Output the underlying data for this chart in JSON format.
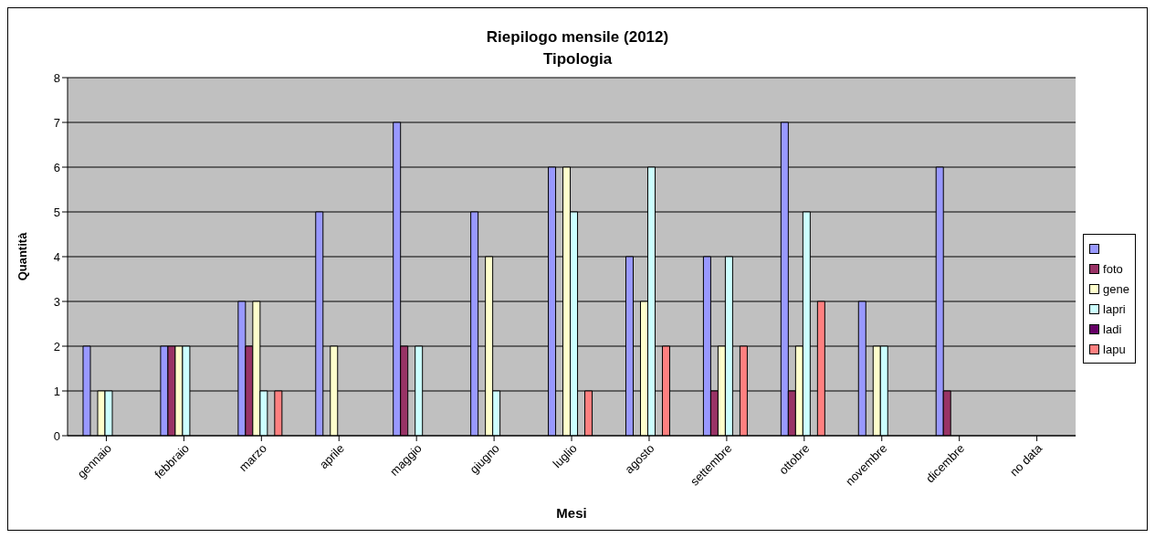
{
  "chart_data": {
    "type": "bar",
    "title": "Riepilogo mensile (2012)",
    "subtitle": "Tipologia",
    "xlabel": "Mesi",
    "ylabel": "Quantità",
    "categories": [
      "gennaio",
      "febbraio",
      "marzo",
      "aprile",
      "maggio",
      "giugno",
      "luglio",
      "agosto",
      "settembre",
      "ottobre",
      "novembre",
      "dicembre",
      "no data"
    ],
    "series": [
      {
        "color": "#9999ff",
        "values": [
          2,
          2,
          3,
          5,
          7,
          5,
          6,
          4,
          4,
          7,
          3,
          6,
          0
        ]
      },
      {
        "name": "foto",
        "color": "#993366",
        "values": [
          0,
          2,
          2,
          0,
          2,
          0,
          0,
          0,
          1,
          1,
          0,
          1,
          0
        ]
      },
      {
        "name": "gene",
        "color": "#ffffcc",
        "values": [
          1,
          2,
          3,
          2,
          0,
          4,
          6,
          3,
          2,
          2,
          2,
          0,
          0
        ]
      },
      {
        "name": "lapri",
        "color": "#ccffff",
        "values": [
          1,
          2,
          1,
          0,
          2,
          1,
          5,
          6,
          4,
          5,
          2,
          0,
          0
        ]
      },
      {
        "name": "ladi",
        "color": "#660066",
        "values": [
          0,
          0,
          0,
          0,
          0,
          0,
          0,
          0,
          0,
          0,
          0,
          0,
          0
        ]
      },
      {
        "name": "lapu",
        "color": "#ff8080",
        "values": [
          0,
          0,
          1,
          0,
          0,
          0,
          1,
          2,
          2,
          3,
          0,
          0,
          0
        ]
      }
    ],
    "ylim": [
      0,
      8
    ],
    "yticks": [
      0,
      1,
      2,
      3,
      4,
      5,
      6,
      7,
      8
    ],
    "grid": "y",
    "legend": "right"
  }
}
